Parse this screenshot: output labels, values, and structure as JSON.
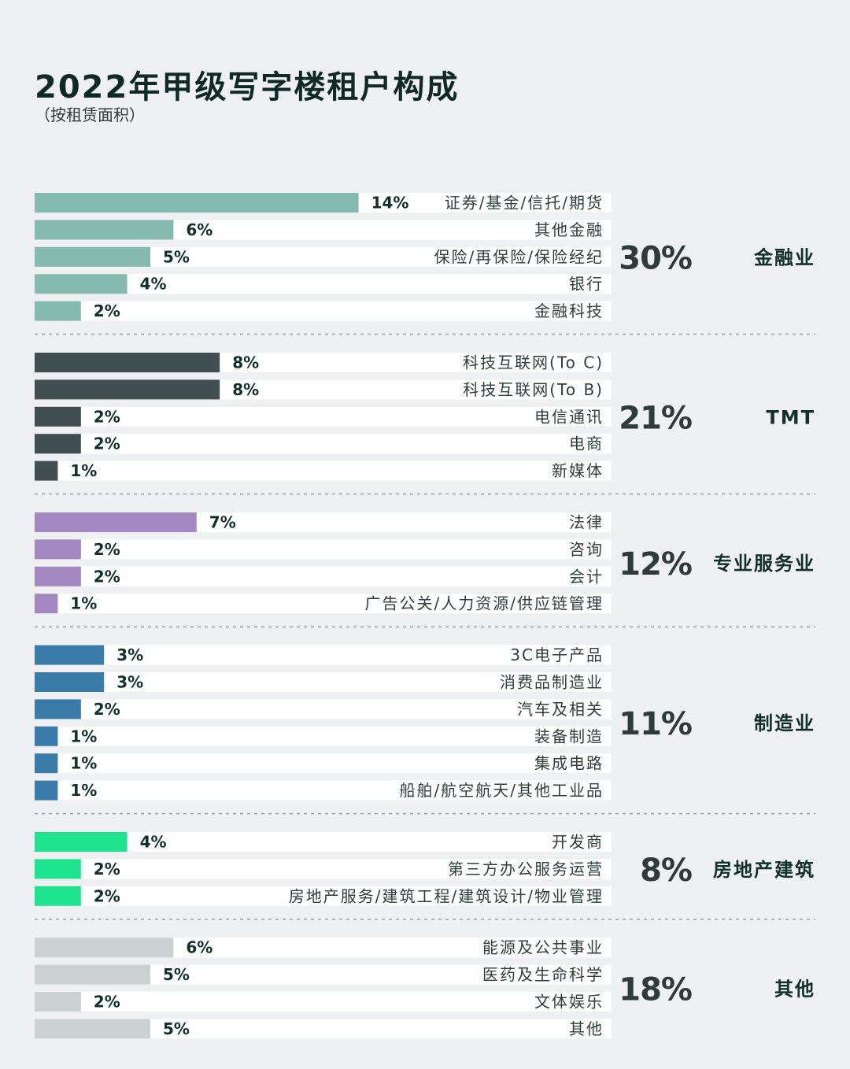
{
  "title": "2022年甲级写字楼租户构成",
  "subtitle": "（按租赁面积）",
  "chart_data": {
    "type": "bar",
    "orientation": "horizontal",
    "unit": "%",
    "xlim": [
      0,
      25
    ],
    "groups": [
      {
        "name": "金融业",
        "total": "30%",
        "color": "#84bbae",
        "items": [
          {
            "label": "证券/基金/信托/期货",
            "value": 14
          },
          {
            "label": "其他金融",
            "value": 6
          },
          {
            "label": "保险/再保险/保险经纪",
            "value": 5
          },
          {
            "label": "银行",
            "value": 4
          },
          {
            "label": "金融科技",
            "value": 2
          }
        ]
      },
      {
        "name": "TMT",
        "total": "21%",
        "color": "#414f52",
        "items": [
          {
            "label": "科技互联网(To C)",
            "value": 8
          },
          {
            "label": "科技互联网(To B)",
            "value": 8
          },
          {
            "label": "电信通讯",
            "value": 2
          },
          {
            "label": "电商",
            "value": 2
          },
          {
            "label": "新媒体",
            "value": 1
          }
        ]
      },
      {
        "name": "专业服务业",
        "total": "12%",
        "color": "#a488c1",
        "items": [
          {
            "label": "法律",
            "value": 7
          },
          {
            "label": "咨询",
            "value": 2
          },
          {
            "label": "会计",
            "value": 2
          },
          {
            "label": "广告公关/人力资源/供应链管理",
            "value": 1
          }
        ]
      },
      {
        "name": "制造业",
        "total": "11%",
        "color": "#3b7ba9",
        "items": [
          {
            "label": "3C电子产品",
            "value": 3
          },
          {
            "label": "消费品制造业",
            "value": 3
          },
          {
            "label": "汽车及相关",
            "value": 2
          },
          {
            "label": "装备制造",
            "value": 1
          },
          {
            "label": "集成电路",
            "value": 1
          },
          {
            "label": "船舶/航空航天/其他工业品",
            "value": 1
          }
        ]
      },
      {
        "name": "房地产建筑",
        "total": "8%",
        "color": "#1fe48f",
        "items": [
          {
            "label": "开发商",
            "value": 4
          },
          {
            "label": "第三方办公服务运营",
            "value": 2
          },
          {
            "label": "房地产服务/建筑工程/建筑设计/物业管理",
            "value": 2
          }
        ]
      },
      {
        "name": "其他",
        "total": "18%",
        "color": "#cad1d2",
        "items": [
          {
            "label": "能源及公共事业",
            "value": 6
          },
          {
            "label": "医药及生命科学",
            "value": 5
          },
          {
            "label": "文体娱乐",
            "value": 2
          },
          {
            "label": "其他",
            "value": 5
          }
        ]
      }
    ]
  }
}
